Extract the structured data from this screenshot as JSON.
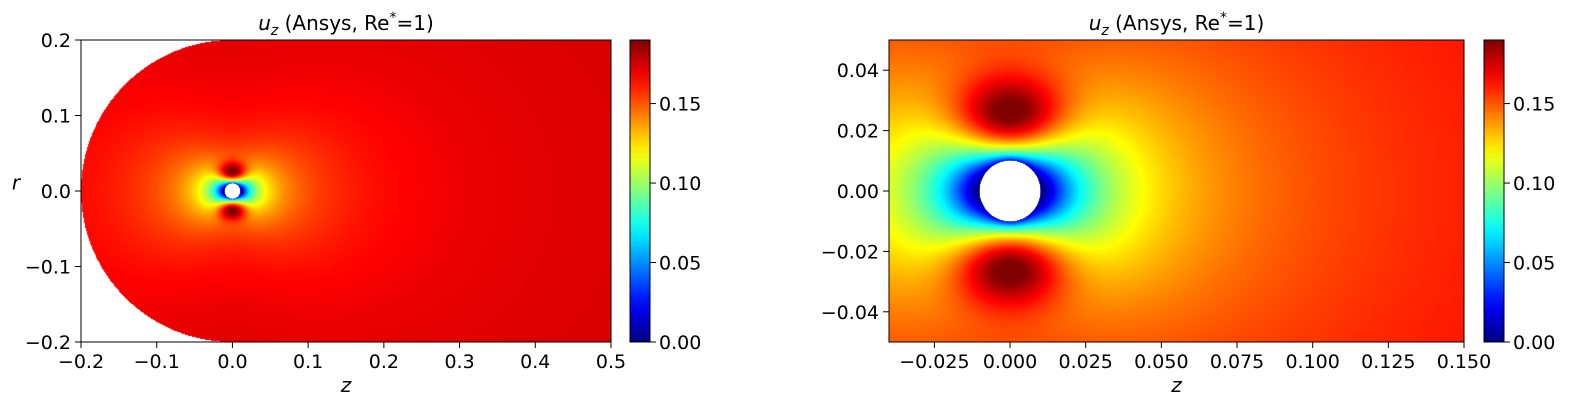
{
  "chart_data": [
    {
      "type": "heatmap",
      "title": "u_z (Ansys, Re*=1)",
      "title_parts": {
        "var": "u",
        "sub": "z",
        "rest": " (Ansys, Re",
        "sup": "*",
        "tail": "=1)"
      },
      "xlabel": "z",
      "ylabel": "r",
      "xlim": [
        -0.2,
        0.5
      ],
      "ylim": [
        -0.2,
        0.2
      ],
      "x_ticks": [
        "−0.2",
        "−0.1",
        "0.0",
        "0.1",
        "0.2",
        "0.3",
        "0.4",
        "0.5"
      ],
      "x_tick_values": [
        -0.2,
        -0.1,
        0.0,
        0.1,
        0.2,
        0.3,
        0.4,
        0.5
      ],
      "y_ticks": [
        "−0.2",
        "−0.1",
        "0.0",
        "0.1",
        "0.2"
      ],
      "y_tick_values": [
        -0.2,
        -0.1,
        0.0,
        0.1,
        0.2
      ],
      "domain": "half-disk inlet of radius 0.2 centered at z=0 joined to a rectangle extending to z=0.5",
      "sphere": {
        "center": [
          0.0,
          0.0
        ],
        "radius": 0.01
      },
      "far_field_value": 0.178,
      "max_value": 0.19,
      "colorbar": {
        "range": [
          0.0,
          0.19
        ],
        "ticks": [
          "0.00",
          "0.05",
          "0.10",
          "0.15"
        ],
        "tick_values": [
          0.0,
          0.05,
          0.1,
          0.15
        ],
        "colormap": "jet"
      }
    },
    {
      "type": "heatmap",
      "title": "u_z (Ansys, Re*=1)",
      "title_parts": {
        "var": "u",
        "sub": "z",
        "rest": " (Ansys, Re",
        "sup": "*",
        "tail": "=1)"
      },
      "xlabel": "z",
      "ylabel": "",
      "xlim": [
        -0.04,
        0.15
      ],
      "ylim": [
        -0.05,
        0.05
      ],
      "x_ticks": [
        "−0.025",
        "0.000",
        "0.025",
        "0.050",
        "0.075",
        "0.100",
        "0.125",
        "0.150"
      ],
      "x_tick_values": [
        -0.025,
        0.0,
        0.025,
        0.05,
        0.075,
        0.1,
        0.125,
        0.15
      ],
      "y_ticks": [
        "−0.04",
        "−0.02",
        "0.00",
        "0.02",
        "0.04"
      ],
      "y_tick_values": [
        -0.04,
        -0.02,
        0.0,
        0.02,
        0.04
      ],
      "sphere": {
        "center": [
          0.0,
          0.0
        ],
        "radius": 0.01
      },
      "far_field_value": 0.178,
      "max_value": 0.19,
      "colorbar": {
        "range": [
          0.0,
          0.19
        ],
        "ticks": [
          "0.00",
          "0.05",
          "0.10",
          "0.15"
        ],
        "tick_values": [
          0.0,
          0.05,
          0.1,
          0.15
        ],
        "colormap": "jet"
      }
    }
  ]
}
